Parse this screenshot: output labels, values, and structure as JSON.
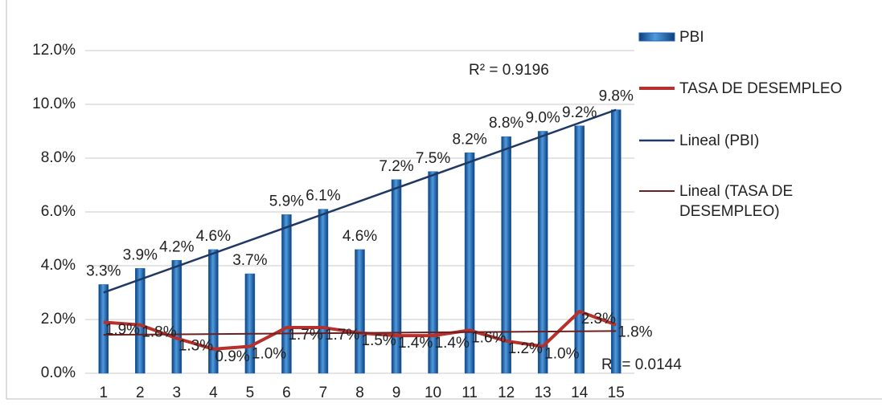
{
  "chart_data": {
    "type": "bar",
    "categories": [
      "1",
      "2",
      "3",
      "4",
      "5",
      "6",
      "7",
      "8",
      "9",
      "10",
      "11",
      "12",
      "13",
      "14",
      "15"
    ],
    "series": [
      {
        "name": "PBI",
        "type": "bar",
        "color": "#1f62ad",
        "values": [
          3.3,
          3.9,
          4.2,
          4.6,
          3.7,
          5.9,
          6.1,
          4.6,
          7.2,
          7.5,
          8.2,
          8.8,
          9.0,
          9.2,
          9.8
        ],
        "value_labels": [
          "3.3%",
          "3.9%",
          "4.2%",
          "4.6%",
          "3.7%",
          "5.9%",
          "6.1%",
          "4.6%",
          "7.2%",
          "7.5%",
          "8.2%",
          "8.8%",
          "9.0%",
          "9.2%",
          "9.8%"
        ],
        "trendline": "linear",
        "trendline_name": "Lineal (PBI)",
        "trendline_color": "#1f3864"
      },
      {
        "name": "TASA DE DESEMPLEO",
        "type": "line",
        "color": "#b8302c",
        "values": [
          1.9,
          1.8,
          1.3,
          0.9,
          1.0,
          1.7,
          1.7,
          1.5,
          1.4,
          1.4,
          1.6,
          1.2,
          1.0,
          2.3,
          1.8
        ],
        "value_labels": [
          "1.9%",
          "1.8%",
          "1.3%",
          "0.9%",
          "1.0%",
          "1.7%",
          "1.7%",
          "1.5%",
          "1.4%",
          "1.4%",
          "1.6%",
          "1.2%",
          "1.0%",
          "2.3%",
          "1.8%"
        ],
        "trendline": "linear",
        "trendline_name": "Lineal (TASA DE DESEMPLEO)",
        "trendline_color": "#6e1f1f"
      }
    ],
    "annotations": [
      "R² = 0.9196",
      "R² = 0.0144"
    ],
    "ylim": [
      0,
      12
    ],
    "yticks": [
      {
        "value": 0,
        "label": "0.0%"
      },
      {
        "value": 2,
        "label": "2.0%"
      },
      {
        "value": 4,
        "label": "4.0%"
      },
      {
        "value": 6,
        "label": "6.0%"
      },
      {
        "value": 8,
        "label": "8.0%"
      },
      {
        "value": 10,
        "label": "10.0%"
      },
      {
        "value": 12,
        "label": "12.0%"
      }
    ],
    "grid": true
  }
}
